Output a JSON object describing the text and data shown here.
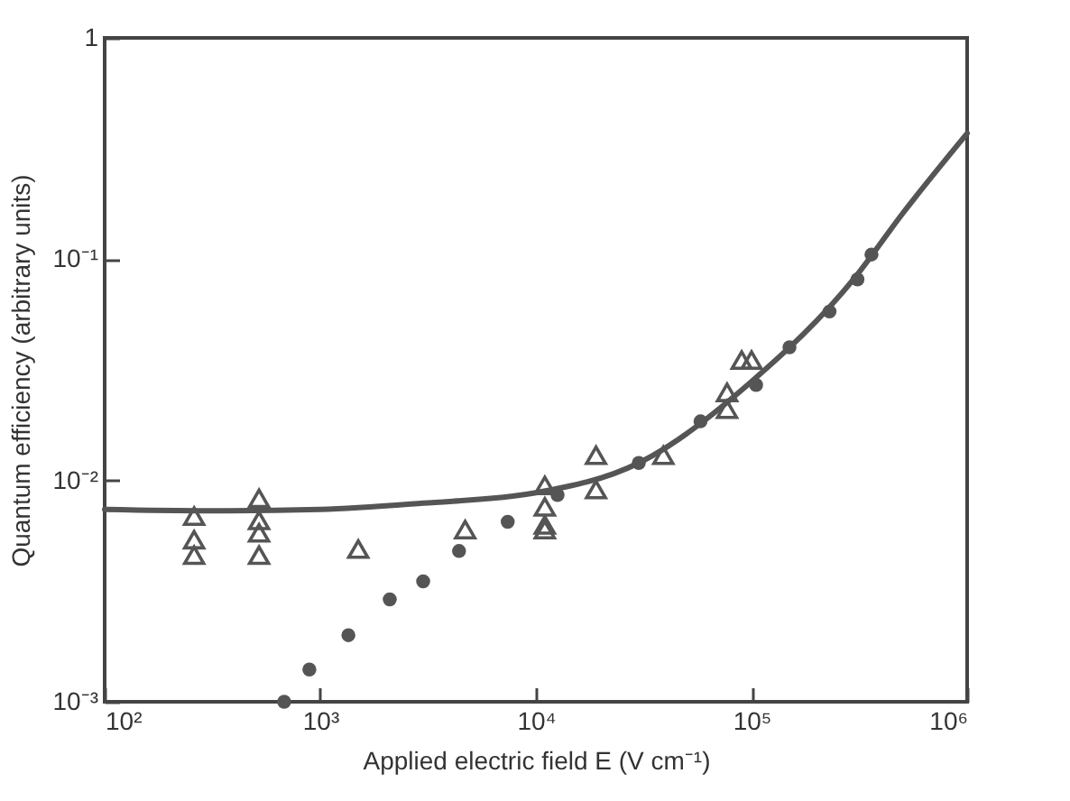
{
  "chart_data": {
    "type": "scatter",
    "xlabel": "Applied electric field E (V cm⁻¹)",
    "ylabel": "Quantum efficiency (arbitrary units)",
    "log": "xy",
    "grid": false,
    "xlim": [
      100,
      1000000
    ],
    "xticks": [
      {
        "value": 100,
        "label": "10²"
      },
      {
        "value": 1000,
        "label": "10³"
      },
      {
        "value": 10000,
        "label": "10⁴"
      },
      {
        "value": 100000,
        "label": "10⁵"
      },
      {
        "value": 1000000,
        "label": "10⁶"
      }
    ],
    "ylim": [
      0.001,
      1
    ],
    "yticks": [
      {
        "value": 0.001,
        "label": "10⁻³"
      },
      {
        "value": 0.01,
        "label": "10⁻²"
      },
      {
        "value": 0.1,
        "label": "10⁻¹"
      },
      1
    ],
    "series": [
      {
        "type": "line",
        "color": "#555555",
        "line_style": "solid",
        "x": [
          100,
          300,
          1000,
          3000,
          10000,
          30000,
          100000,
          300000,
          500000,
          1000000
        ],
        "values": [
          0.0074,
          0.0073,
          0.0074,
          0.0079,
          0.0088,
          0.012,
          0.028,
          0.082,
          0.16,
          0.37
        ]
      },
      {
        "color": "#555555",
        "marker": "triangle",
        "x": [
          260,
          260,
          260,
          520,
          520,
          520,
          520,
          1500,
          4700,
          11000,
          11000,
          11000,
          11000,
          19000,
          19000,
          39000,
          77000,
          77000,
          90000,
          100000
        ],
        "values": [
          0.0069,
          0.0054,
          0.0046,
          0.0083,
          0.0066,
          0.0058,
          0.0046,
          0.0049,
          0.006,
          0.0095,
          0.0076,
          0.0063,
          0.006,
          0.013,
          0.0091,
          0.013,
          0.025,
          0.021,
          0.035,
          0.035
        ]
      },
      {
        "color": "#555555",
        "marker": "circle",
        "x": [
          680,
          890,
          1350,
          2100,
          3000,
          4400,
          7400,
          12600,
          30000,
          58000,
          105000,
          150000,
          230000,
          310000,
          360000
        ],
        "values": [
          0.001,
          0.0014,
          0.002,
          0.0029,
          0.0035,
          0.0048,
          0.0065,
          0.0086,
          0.012,
          0.0185,
          0.027,
          0.04,
          0.058,
          0.081,
          0.105
        ]
      }
    ]
  }
}
